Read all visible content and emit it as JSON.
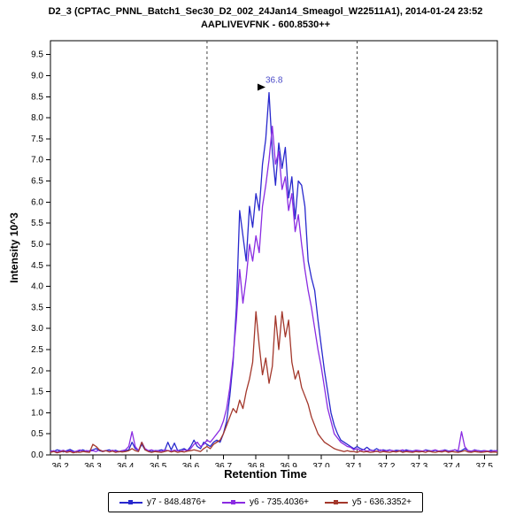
{
  "chart_data": {
    "type": "line",
    "title": "D2_3 (CPTAC_PNNL_Batch1_Sec30_D2_002_24Jan14_Smeagol_W22511A1), 2014-01-24 23:52",
    "subtitle": "AAPLIVEVFNK - 600.8530++",
    "xlabel": "Retention Time",
    "ylabel": "Intensity 10^3",
    "xlim": [
      36.17,
      37.54
    ],
    "ylim": [
      0,
      9.83
    ],
    "x_ticks": [
      36.2,
      36.3,
      36.4,
      36.5,
      36.6,
      36.7,
      36.8,
      36.9,
      37.0,
      37.1,
      37.2,
      37.3,
      37.4,
      37.5
    ],
    "y_ticks": [
      0.0,
      0.5,
      1.0,
      1.5,
      2.0,
      2.5,
      3.0,
      3.5,
      4.0,
      4.5,
      5.0,
      5.5,
      6.0,
      6.5,
      7.0,
      7.5,
      8.0,
      8.5,
      9.0,
      9.5
    ],
    "grid": false,
    "legend_position": "bottom",
    "peak_boundaries": [
      36.65,
      37.11
    ],
    "annotation": {
      "text": "36.8",
      "x": 36.84,
      "y": 8.6,
      "color": "#4a4ac8",
      "arrow_color": "#000000"
    },
    "x_start": 36.17,
    "x_step": 0.01,
    "series": [
      {
        "name": "y7 - 848.4876+",
        "color": "#2828cd",
        "values": [
          0.1,
          0.08,
          0.12,
          0.1,
          0.07,
          0.1,
          0.13,
          0.09,
          0.06,
          0.1,
          0.12,
          0.08,
          0.1,
          0.12,
          0.15,
          0.1,
          0.08,
          0.1,
          0.12,
          0.09,
          0.11,
          0.08,
          0.1,
          0.1,
          0.12,
          0.3,
          0.15,
          0.1,
          0.25,
          0.12,
          0.1,
          0.08,
          0.1,
          0.1,
          0.12,
          0.1,
          0.3,
          0.12,
          0.28,
          0.1,
          0.12,
          0.15,
          0.1,
          0.2,
          0.35,
          0.2,
          0.15,
          0.3,
          0.25,
          0.2,
          0.3,
          0.35,
          0.3,
          0.5,
          0.8,
          1.4,
          2.2,
          3.5,
          5.8,
          5.2,
          4.6,
          5.9,
          5.4,
          6.2,
          5.8,
          6.9,
          7.5,
          8.6,
          7.2,
          6.4,
          7.4,
          6.8,
          7.3,
          6.1,
          6.6,
          5.6,
          6.5,
          6.4,
          5.9,
          4.6,
          4.2,
          3.9,
          3.2,
          2.6,
          2.0,
          1.5,
          1.0,
          0.7,
          0.5,
          0.35,
          0.3,
          0.25,
          0.2,
          0.15,
          0.2,
          0.15,
          0.12,
          0.18,
          0.12,
          0.1,
          0.15,
          0.1,
          0.12,
          0.1,
          0.12,
          0.09,
          0.11,
          0.1,
          0.08,
          0.12,
          0.1,
          0.09,
          0.11,
          0.1,
          0.08,
          0.12,
          0.1,
          0.09,
          0.11,
          0.08,
          0.1,
          0.12,
          0.09,
          0.1,
          0.12,
          0.08,
          0.1,
          0.15,
          0.1,
          0.08,
          0.12,
          0.1,
          0.09,
          0.1,
          0.08,
          0.11,
          0.09,
          0.1
        ]
      },
      {
        "name": "y6 - 735.4036+",
        "color": "#8a2be2",
        "values": [
          0.08,
          0.1,
          0.07,
          0.09,
          0.11,
          0.08,
          0.1,
          0.07,
          0.09,
          0.12,
          0.08,
          0.1,
          0.09,
          0.1,
          0.08,
          0.12,
          0.09,
          0.1,
          0.08,
          0.11,
          0.09,
          0.07,
          0.1,
          0.12,
          0.2,
          0.55,
          0.2,
          0.1,
          0.3,
          0.15,
          0.1,
          0.12,
          0.09,
          0.1,
          0.08,
          0.12,
          0.1,
          0.09,
          0.11,
          0.1,
          0.08,
          0.12,
          0.1,
          0.15,
          0.25,
          0.3,
          0.2,
          0.25,
          0.35,
          0.3,
          0.4,
          0.5,
          0.6,
          0.8,
          1.1,
          1.6,
          2.3,
          3.2,
          4.4,
          3.6,
          4.2,
          5.0,
          4.6,
          5.2,
          4.8,
          5.9,
          6.4,
          7.0,
          7.8,
          6.9,
          7.2,
          6.3,
          6.6,
          5.8,
          6.2,
          5.3,
          5.7,
          5.0,
          4.4,
          3.9,
          3.5,
          3.0,
          2.5,
          2.1,
          1.6,
          1.1,
          0.8,
          0.5,
          0.4,
          0.3,
          0.25,
          0.2,
          0.18,
          0.12,
          0.15,
          0.1,
          0.12,
          0.09,
          0.11,
          0.1,
          0.08,
          0.12,
          0.1,
          0.09,
          0.11,
          0.1,
          0.08,
          0.1,
          0.12,
          0.09,
          0.1,
          0.08,
          0.11,
          0.1,
          0.09,
          0.11,
          0.08,
          0.1,
          0.12,
          0.09,
          0.1,
          0.11,
          0.08,
          0.1,
          0.12,
          0.1,
          0.55,
          0.2,
          0.1,
          0.09,
          0.11,
          0.1,
          0.08,
          0.1,
          0.09,
          0.08,
          0.1,
          0.09
        ]
      },
      {
        "name": "y5 - 636.3352+",
        "color": "#a3372b",
        "values": [
          0.06,
          0.08,
          0.05,
          0.07,
          0.09,
          0.06,
          0.08,
          0.05,
          0.07,
          0.06,
          0.08,
          0.07,
          0.06,
          0.25,
          0.2,
          0.12,
          0.08,
          0.1,
          0.07,
          0.09,
          0.06,
          0.08,
          0.07,
          0.08,
          0.1,
          0.15,
          0.1,
          0.08,
          0.3,
          0.12,
          0.08,
          0.06,
          0.08,
          0.07,
          0.06,
          0.08,
          0.1,
          0.07,
          0.09,
          0.06,
          0.08,
          0.07,
          0.09,
          0.1,
          0.12,
          0.1,
          0.08,
          0.15,
          0.2,
          0.15,
          0.25,
          0.3,
          0.35,
          0.5,
          0.7,
          0.9,
          1.1,
          1.0,
          1.3,
          1.1,
          1.5,
          1.8,
          2.2,
          3.4,
          2.6,
          1.9,
          2.3,
          1.7,
          2.1,
          3.3,
          2.5,
          3.4,
          2.8,
          3.2,
          2.2,
          1.8,
          2.0,
          1.6,
          1.4,
          1.2,
          0.9,
          0.7,
          0.5,
          0.4,
          0.3,
          0.25,
          0.2,
          0.15,
          0.12,
          0.1,
          0.08,
          0.1,
          0.08,
          0.08,
          0.06,
          0.09,
          0.07,
          0.08,
          0.06,
          0.07,
          0.09,
          0.06,
          0.08,
          0.07,
          0.06,
          0.08,
          0.07,
          0.09,
          0.06,
          0.08,
          0.07,
          0.06,
          0.08,
          0.07,
          0.08,
          0.06,
          0.09,
          0.07,
          0.06,
          0.08,
          0.07,
          0.09,
          0.06,
          0.08,
          0.07,
          0.06,
          0.08,
          0.1,
          0.07,
          0.06,
          0.08,
          0.07,
          0.06,
          0.07,
          0.08,
          0.06,
          0.07,
          0.06
        ]
      }
    ]
  }
}
